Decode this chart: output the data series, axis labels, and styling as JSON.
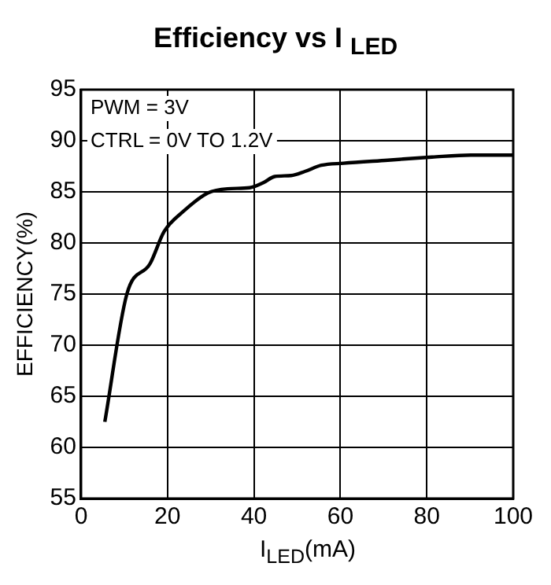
{
  "chart_data": {
    "type": "line",
    "title": "Efficiency vs I $_{LED}$",
    "xlabel": "I$_{LED}$(mA)",
    "ylabel": "EFFICIENCY(%)",
    "x": [
      5.5,
      10.6,
      16,
      19.2,
      23.7,
      29.4,
      33.9,
      39,
      42.2,
      44.8,
      48.6,
      51.8,
      55.6,
      60.7,
      71,
      81.2,
      90.2,
      100
    ],
    "series": [
      {
        "color": "#000000",
        "values": [
          62.5,
          75.0,
          78.0,
          81.1,
          83.1,
          84.9,
          85.3,
          85.4,
          85.9,
          86.5,
          86.6,
          87.0,
          87.6,
          87.8,
          88.1,
          88.4,
          88.6,
          88.6
        ]
      }
    ],
    "xlim": [
      0,
      100
    ],
    "xticks": [
      0,
      20,
      40,
      60,
      80,
      100
    ],
    "ylim": [
      55,
      95
    ],
    "yticks": [
      55,
      60,
      65,
      70,
      75,
      80,
      85,
      90,
      95
    ],
    "grid": true,
    "legend": false,
    "marker": "none",
    "line_style": "solid",
    "annotations": [
      "PWM = 3V",
      "CTRL = 0V TO 1.2V"
    ]
  }
}
